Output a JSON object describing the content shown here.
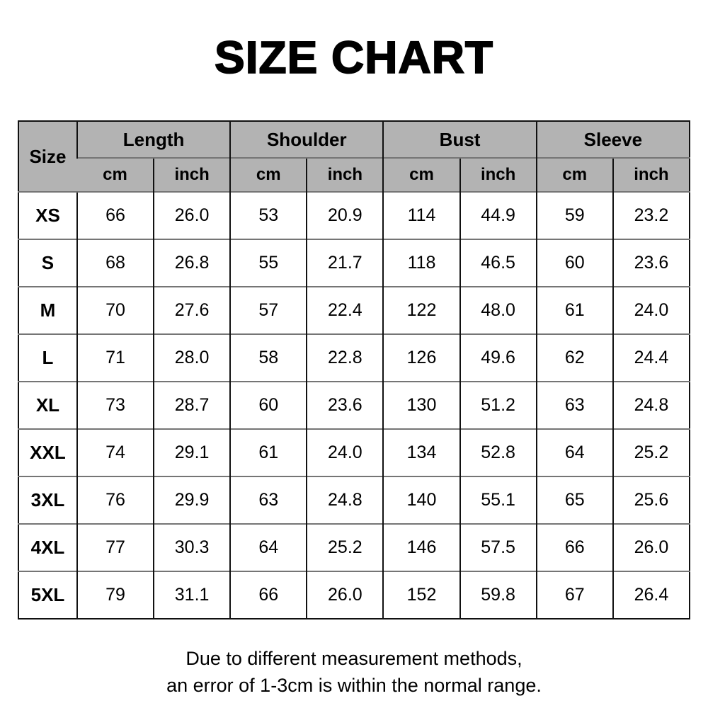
{
  "title": "SIZE CHART",
  "chart_data": {
    "type": "table",
    "title": "SIZE CHART",
    "size_header": "Size",
    "column_groups": [
      "Length",
      "Shoulder",
      "Bust",
      "Sleeve"
    ],
    "unit_cm": "cm",
    "unit_inch": "inch",
    "columns": [
      "Size",
      "Length cm",
      "Length inch",
      "Shoulder cm",
      "Shoulder inch",
      "Bust cm",
      "Bust inch",
      "Sleeve cm",
      "Sleeve inch"
    ],
    "rows": [
      {
        "size": "XS",
        "values": [
          "66",
          "26.0",
          "53",
          "20.9",
          "114",
          "44.9",
          "59",
          "23.2"
        ]
      },
      {
        "size": "S",
        "values": [
          "68",
          "26.8",
          "55",
          "21.7",
          "118",
          "46.5",
          "60",
          "23.6"
        ]
      },
      {
        "size": "M",
        "values": [
          "70",
          "27.6",
          "57",
          "22.4",
          "122",
          "48.0",
          "61",
          "24.0"
        ]
      },
      {
        "size": "L",
        "values": [
          "71",
          "28.0",
          "58",
          "22.8",
          "126",
          "49.6",
          "62",
          "24.4"
        ]
      },
      {
        "size": "XL",
        "values": [
          "73",
          "28.7",
          "60",
          "23.6",
          "130",
          "51.2",
          "63",
          "24.8"
        ]
      },
      {
        "size": "XXL",
        "values": [
          "74",
          "29.1",
          "61",
          "24.0",
          "134",
          "52.8",
          "64",
          "25.2"
        ]
      },
      {
        "size": "3XL",
        "values": [
          "76",
          "29.9",
          "63",
          "24.8",
          "140",
          "55.1",
          "65",
          "25.6"
        ]
      },
      {
        "size": "4XL",
        "values": [
          "77",
          "30.3",
          "64",
          "25.2",
          "146",
          "57.5",
          "66",
          "26.0"
        ]
      },
      {
        "size": "5XL",
        "values": [
          "79",
          "31.1",
          "66",
          "26.0",
          "152",
          "59.8",
          "67",
          "26.4"
        ]
      }
    ]
  },
  "footer": {
    "line1": "Due to different measurement methods,",
    "line2": "an error of 1-3cm is within the normal range."
  },
  "colors": {
    "header_bg": "#b3b3b3",
    "border_dark": "#111111",
    "border_gray": "#757575",
    "text": "#000000",
    "page_bg": "#ffffff"
  }
}
